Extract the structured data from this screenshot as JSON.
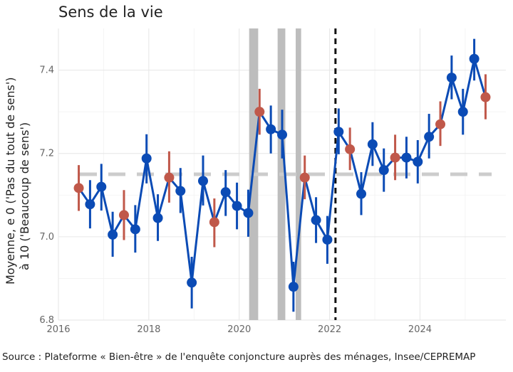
{
  "chart_data": {
    "type": "line",
    "title": "Sens de la vie",
    "ylabel": [
      "Moyenne, e 0 ('Pas du tout de sens')",
      "à 10 ('Beaucoup de sens')"
    ],
    "xlabel": "",
    "ylim": [
      6.8,
      7.5
    ],
    "xlim": [
      2016,
      2025.9
    ],
    "y_ticks": [
      "6.8",
      "7.0",
      "7.2",
      "7.4"
    ],
    "y_tick_values": [
      6.8,
      7.0,
      7.2,
      7.4
    ],
    "x_ticks": [
      "2016",
      "2018",
      "2020",
      "2022",
      "2024"
    ],
    "x_tick_values": [
      2016,
      2018,
      2020,
      2022,
      2024
    ],
    "grid": true,
    "reference_line": 7.15,
    "vertical_line_dashed": 2022.13,
    "shaded_bands": [
      [
        2020.22,
        2020.42
      ],
      [
        2020.85,
        2021.02
      ],
      [
        2021.25,
        2021.37
      ]
    ],
    "colors": {
      "line": "#0b4bb5",
      "highlight": "#c0584a",
      "band": "#bdbdbd",
      "reference": "#cccccc"
    },
    "series": [
      {
        "points": [
          {
            "x": 2016.45,
            "y": 7.117,
            "lo": 7.062,
            "hi": 7.172,
            "highlight": true
          },
          {
            "x": 2016.7,
            "y": 7.078,
            "lo": 7.02,
            "hi": 7.136
          },
          {
            "x": 2016.95,
            "y": 7.12,
            "lo": 7.063,
            "hi": 7.175
          },
          {
            "x": 2017.2,
            "y": 7.005,
            "lo": 6.952,
            "hi": 7.06
          },
          {
            "x": 2017.45,
            "y": 7.052,
            "lo": 6.992,
            "hi": 7.112,
            "highlight": true
          },
          {
            "x": 2017.7,
            "y": 7.018,
            "lo": 6.962,
            "hi": 7.076
          },
          {
            "x": 2017.95,
            "y": 7.188,
            "lo": 7.128,
            "hi": 7.246
          },
          {
            "x": 2018.2,
            "y": 7.045,
            "lo": 6.99,
            "hi": 7.102
          },
          {
            "x": 2018.45,
            "y": 7.142,
            "lo": 7.082,
            "hi": 7.205,
            "highlight": true
          },
          {
            "x": 2018.7,
            "y": 7.11,
            "lo": 7.057,
            "hi": 7.165
          },
          {
            "x": 2018.95,
            "y": 6.89,
            "lo": 6.828,
            "hi": 6.952
          },
          {
            "x": 2019.2,
            "y": 7.134,
            "lo": 7.075,
            "hi": 7.195
          },
          {
            "x": 2019.45,
            "y": 7.035,
            "lo": 6.975,
            "hi": 7.092,
            "highlight": true
          },
          {
            "x": 2019.7,
            "y": 7.107,
            "lo": 7.05,
            "hi": 7.16
          },
          {
            "x": 2019.95,
            "y": 7.074,
            "lo": 7.018,
            "hi": 7.13
          },
          {
            "x": 2020.2,
            "y": 7.057,
            "lo": 7.0,
            "hi": 7.113
          },
          {
            "x": 2020.45,
            "y": 7.3,
            "lo": 7.245,
            "hi": 7.355,
            "highlight": true
          },
          {
            "x": 2020.7,
            "y": 7.258,
            "lo": 7.2,
            "hi": 7.315
          },
          {
            "x": 2020.95,
            "y": 7.245,
            "lo": 7.188,
            "hi": 7.305
          },
          {
            "x": 2021.2,
            "y": 6.88,
            "lo": 6.82,
            "hi": 6.94
          },
          {
            "x": 2021.45,
            "y": 7.142,
            "lo": 7.09,
            "hi": 7.195,
            "highlight": true
          },
          {
            "x": 2021.7,
            "y": 7.04,
            "lo": 6.985,
            "hi": 7.095
          },
          {
            "x": 2021.95,
            "y": 6.993,
            "lo": 6.935,
            "hi": 7.05
          },
          {
            "x": 2022.2,
            "y": 7.252,
            "lo": 7.198,
            "hi": 7.308
          },
          {
            "x": 2022.45,
            "y": 7.21,
            "lo": 7.16,
            "hi": 7.262,
            "highlight": true
          },
          {
            "x": 2022.7,
            "y": 7.103,
            "lo": 7.052,
            "hi": 7.155
          },
          {
            "x": 2022.95,
            "y": 7.222,
            "lo": 7.17,
            "hi": 7.275
          },
          {
            "x": 2023.2,
            "y": 7.16,
            "lo": 7.108,
            "hi": 7.212
          },
          {
            "x": 2023.45,
            "y": 7.19,
            "lo": 7.136,
            "hi": 7.245,
            "highlight": true
          },
          {
            "x": 2023.7,
            "y": 7.19,
            "lo": 7.14,
            "hi": 7.24
          },
          {
            "x": 2023.95,
            "y": 7.18,
            "lo": 7.128,
            "hi": 7.232
          },
          {
            "x": 2024.2,
            "y": 7.24,
            "lo": 7.188,
            "hi": 7.295
          },
          {
            "x": 2024.45,
            "y": 7.27,
            "lo": 7.218,
            "hi": 7.325,
            "highlight": true
          },
          {
            "x": 2024.7,
            "y": 7.382,
            "lo": 7.33,
            "hi": 7.435
          },
          {
            "x": 2024.95,
            "y": 7.3,
            "lo": 7.245,
            "hi": 7.355
          },
          {
            "x": 2025.2,
            "y": 7.427,
            "lo": 7.375,
            "hi": 7.475
          },
          {
            "x": 2025.45,
            "y": 7.335,
            "lo": 7.282,
            "hi": 7.39,
            "highlight": true
          }
        ]
      }
    ]
  },
  "source": "Source : Plateforme « Bien-être » de l'enquête conjoncture auprès des ménages, Insee/CEPREMAP"
}
